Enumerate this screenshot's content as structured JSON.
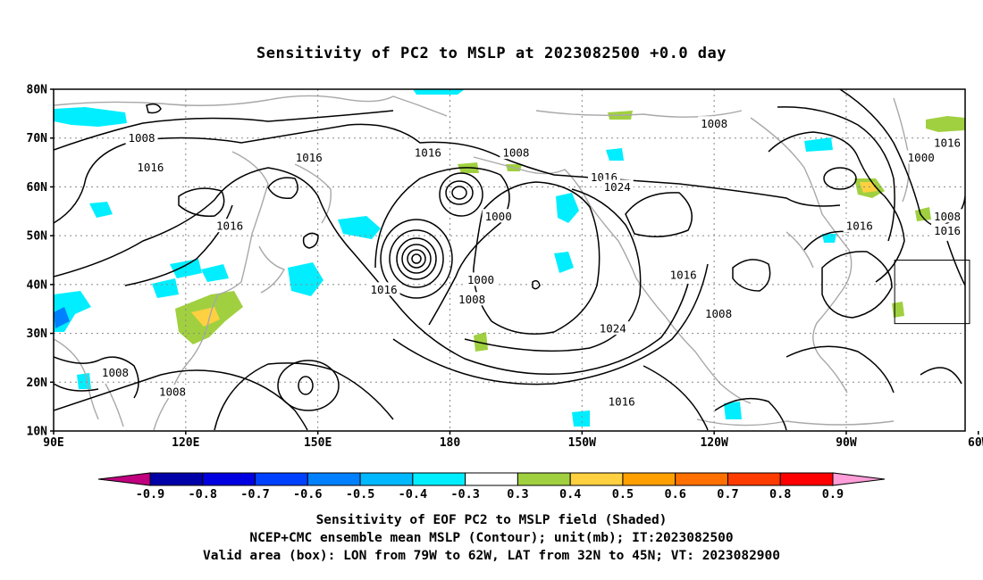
{
  "title": "Sensitivity of PC2 to MSLP at 2023082500 +0.0 day",
  "map": {
    "lon_range": [
      90,
      297
    ],
    "lat_range": [
      10,
      80
    ],
    "lat_ticks": [
      {
        "value": 80,
        "label": "80N"
      },
      {
        "value": 70,
        "label": "70N"
      },
      {
        "value": 60,
        "label": "60N"
      },
      {
        "value": 50,
        "label": "50N"
      },
      {
        "value": 40,
        "label": "40N"
      },
      {
        "value": 30,
        "label": "30N"
      },
      {
        "value": 20,
        "label": "20N"
      },
      {
        "value": 10,
        "label": "10N"
      }
    ],
    "lon_ticks": [
      {
        "value": 90,
        "label": "90E"
      },
      {
        "value": 120,
        "label": "120E"
      },
      {
        "value": 150,
        "label": "150E"
      },
      {
        "value": 180,
        "label": "180"
      },
      {
        "value": 210,
        "label": "150W"
      },
      {
        "value": 240,
        "label": "120W"
      },
      {
        "value": 270,
        "label": "90W"
      },
      {
        "value": 300,
        "label": "60W"
      }
    ],
    "grid": "dotted",
    "valid_box": {
      "lon_min": 281,
      "lon_max": 298,
      "lat_min": 32,
      "lat_max": 45
    },
    "contour_labels": [
      {
        "text": "1008",
        "lon": 110,
        "lat": 70
      },
      {
        "text": "1016",
        "lon": 112,
        "lat": 64
      },
      {
        "text": "1016",
        "lon": 148,
        "lat": 66
      },
      {
        "text": "1016",
        "lon": 130,
        "lat": 52
      },
      {
        "text": "1016",
        "lon": 175,
        "lat": 67
      },
      {
        "text": "1008",
        "lon": 195,
        "lat": 67
      },
      {
        "text": "1000",
        "lon": 191,
        "lat": 54
      },
      {
        "text": "1016",
        "lon": 215,
        "lat": 62
      },
      {
        "text": "1024",
        "lon": 218,
        "lat": 60
      },
      {
        "text": "1000",
        "lon": 187,
        "lat": 41
      },
      {
        "text": "1008",
        "lon": 185,
        "lat": 37
      },
      {
        "text": "1016",
        "lon": 165,
        "lat": 39
      },
      {
        "text": "1024",
        "lon": 217,
        "lat": 31
      },
      {
        "text": "1016",
        "lon": 219,
        "lat": 16
      },
      {
        "text": "1016",
        "lon": 233,
        "lat": 42
      },
      {
        "text": "1008",
        "lon": 241,
        "lat": 34
      },
      {
        "text": "1008",
        "lon": 240,
        "lat": 73
      },
      {
        "text": "1000",
        "lon": 287,
        "lat": 66
      },
      {
        "text": "1016",
        "lon": 273,
        "lat": 52
      },
      {
        "text": "1008",
        "lon": 295,
        "lat": 54
      },
      {
        "text": "1016",
        "lon": 299,
        "lat": 51
      },
      {
        "text": "1016",
        "lon": 318,
        "lat": 69
      },
      {
        "text": "1008",
        "lon": 104,
        "lat": 22
      },
      {
        "text": "1008",
        "lon": 117,
        "lat": 18
      }
    ]
  },
  "colorbar": {
    "colors": [
      "#c0007f",
      "#0000a8",
      "#0000e0",
      "#0040ff",
      "#0080ff",
      "#00b8ff",
      "#00eeff",
      "#ffffff",
      "#a0d040",
      "#ffd040",
      "#ffa000",
      "#ff7000",
      "#ff3c00",
      "#ff0000",
      "#ff9ed8"
    ],
    "labels": [
      "-0.9",
      "-0.8",
      "-0.7",
      "-0.6",
      "-0.5",
      "-0.4",
      "-0.3",
      "0.3",
      "0.4",
      "0.5",
      "0.6",
      "0.7",
      "0.8",
      "0.9"
    ]
  },
  "footer": {
    "line1": "Sensitivity of EOF PC2 to MSLP field (Shaded)",
    "line2": "NCEP+CMC ensemble mean MSLP (Contour); unit(mb); IT:2023082500",
    "line3": "Valid area (box): LON from 79W to 62W, LAT from 32N to 45N; VT: 2023082900"
  }
}
